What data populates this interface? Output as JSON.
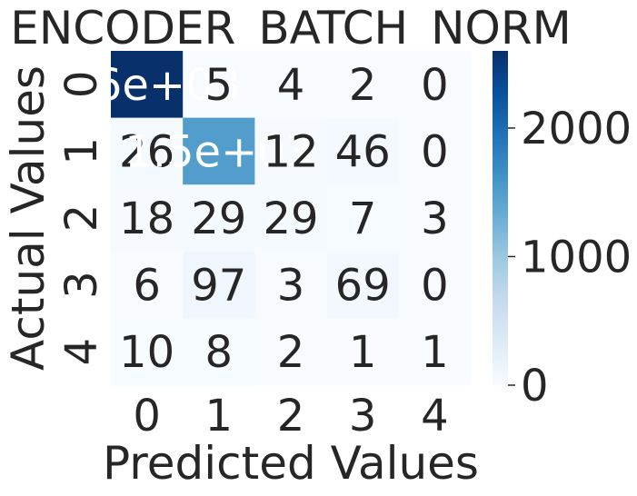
{
  "chart_data": {
    "type": "heatmap",
    "title": "ENCODER_BATCH_NORM",
    "xlabel": "Predicted Values",
    "ylabel": "Actual Values",
    "x_categories": [
      "0",
      "1",
      "2",
      "3",
      "4"
    ],
    "y_categories": [
      "0",
      "1",
      "2",
      "3",
      "4"
    ],
    "values": [
      [
        2600,
        5,
        4,
        2,
        0
      ],
      [
        26,
        1500,
        12,
        46,
        0
      ],
      [
        18,
        29,
        29,
        7,
        3
      ],
      [
        6,
        97,
        3,
        69,
        0
      ],
      [
        10,
        8,
        2,
        1,
        1
      ]
    ],
    "cell_labels": [
      [
        "2.6e+03",
        "5",
        "4",
        "2",
        "0"
      ],
      [
        "26",
        "1.5e+03",
        "12",
        "46",
        "0"
      ],
      [
        "18",
        "29",
        "29",
        "7",
        "3"
      ],
      [
        "6",
        "97",
        "3",
        "69",
        "0"
      ],
      [
        "10",
        "8",
        "2",
        "1",
        "1"
      ]
    ],
    "colorbar": {
      "ticks": [
        0,
        1000,
        2000
      ],
      "tick_labels": [
        "0",
        "1000",
        "2000"
      ],
      "range": [
        0,
        2600
      ]
    },
    "colormap": "Blues",
    "colors": {
      "low": "#f7fbff",
      "high": "#08306b",
      "text_dark": "#262626",
      "text_light": "#ffffff"
    }
  }
}
